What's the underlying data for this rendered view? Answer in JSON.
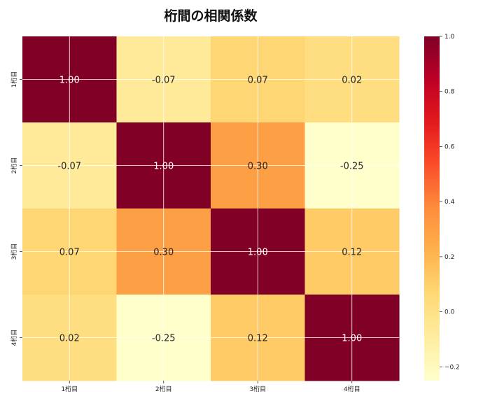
{
  "chart_data": {
    "type": "heatmap",
    "title": "桁間の相関係数",
    "xlabel": "",
    "ylabel": "",
    "x_categories": [
      "1桁目",
      "2桁目",
      "3桁目",
      "4桁目"
    ],
    "y_categories": [
      "1桁目",
      "2桁目",
      "3桁目",
      "4桁目"
    ],
    "values": [
      [
        1.0,
        -0.07,
        0.07,
        0.02
      ],
      [
        -0.07,
        1.0,
        0.3,
        -0.25
      ],
      [
        0.07,
        0.3,
        1.0,
        0.12
      ],
      [
        0.02,
        -0.25,
        0.12,
        1.0
      ]
    ],
    "value_labels": [
      [
        "1.00",
        "-0.07",
        "0.07",
        "0.02"
      ],
      [
        "-0.07",
        "1.00",
        "0.30",
        "-0.25"
      ],
      [
        "0.07",
        "0.30",
        "1.00",
        "0.12"
      ],
      [
        "0.02",
        "-0.25",
        "0.12",
        "1.00"
      ]
    ],
    "colormap": "YlOrRd",
    "vmin": -0.25,
    "vmax": 1.0,
    "colorbar": {
      "ticks": [
        -0.2,
        0.0,
        0.2,
        0.4,
        0.6,
        0.8,
        1.0
      ],
      "tick_labels": [
        "−0.2",
        "0.0",
        "0.2",
        "0.4",
        "0.6",
        "0.8",
        "1.0"
      ],
      "position": "right"
    },
    "grid": true,
    "colors": {
      "stops": [
        "#ffffcc",
        "#ffeda0",
        "#fed976",
        "#feb24c",
        "#fd8d3c",
        "#fc4e2a",
        "#e31a1c",
        "#bd0026",
        "#800026"
      ],
      "grid": "#ffffff"
    }
  }
}
